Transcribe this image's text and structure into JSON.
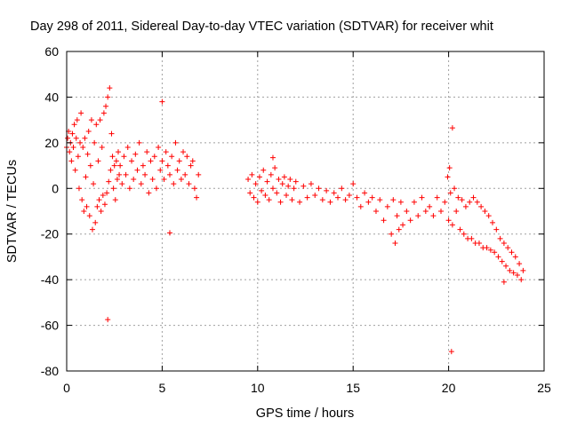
{
  "chart_data": {
    "type": "scatter",
    "title": "Day 298 of 2011, Sidereal Day-to-day VTEC variation (SDTVAR) for receiver whit",
    "xlabel": "GPS time / hours",
    "ylabel": "SDTVAR / TECUs",
    "xlim": [
      0,
      25
    ],
    "ylim": [
      -80,
      60
    ],
    "xticks": [
      0,
      5,
      10,
      15,
      20,
      25
    ],
    "yticks": [
      -80,
      -60,
      -40,
      -20,
      0,
      20,
      40,
      60
    ],
    "grid": true,
    "marker": "+",
    "color": "#ff0000",
    "series": [
      {
        "name": "SDTVAR",
        "points": [
          [
            0.0,
            18
          ],
          [
            0.05,
            22
          ],
          [
            0.1,
            25
          ],
          [
            0.15,
            16
          ],
          [
            0.2,
            20
          ],
          [
            0.25,
            12
          ],
          [
            0.3,
            24
          ],
          [
            0.35,
            18
          ],
          [
            0.4,
            28
          ],
          [
            0.45,
            8
          ],
          [
            0.5,
            22
          ],
          [
            0.55,
            30
          ],
          [
            0.6,
            14
          ],
          [
            0.65,
            0
          ],
          [
            0.7,
            20
          ],
          [
            0.75,
            33
          ],
          [
            0.8,
            -5
          ],
          [
            0.85,
            18
          ],
          [
            0.9,
            -10
          ],
          [
            0.95,
            22
          ],
          [
            1.0,
            5
          ],
          [
            1.05,
            -8
          ],
          [
            1.1,
            15
          ],
          [
            1.15,
            25
          ],
          [
            1.2,
            -12
          ],
          [
            1.25,
            10
          ],
          [
            1.3,
            30
          ],
          [
            1.35,
            -18
          ],
          [
            1.4,
            2
          ],
          [
            1.45,
            20
          ],
          [
            1.5,
            -15
          ],
          [
            1.55,
            28
          ],
          [
            1.6,
            -8
          ],
          [
            1.65,
            12
          ],
          [
            1.7,
            -5
          ],
          [
            1.75,
            30
          ],
          [
            1.8,
            -10
          ],
          [
            1.85,
            18
          ],
          [
            1.9,
            -3
          ],
          [
            1.95,
            33
          ],
          [
            2.0,
            -7
          ],
          [
            2.05,
            36
          ],
          [
            2.1,
            -2
          ],
          [
            2.15,
            40
          ],
          [
            2.2,
            3
          ],
          [
            2.25,
            44
          ],
          [
            2.3,
            8
          ],
          [
            2.35,
            24
          ],
          [
            2.4,
            14
          ],
          [
            2.45,
            0
          ],
          [
            2.5,
            10
          ],
          [
            2.55,
            -5
          ],
          [
            2.6,
            12
          ],
          [
            2.65,
            4
          ],
          [
            2.7,
            16
          ],
          [
            2.75,
            6
          ],
          [
            2.8,
            10
          ],
          [
            2.9,
            2
          ],
          [
            3.0,
            14
          ],
          [
            3.1,
            6
          ],
          [
            3.2,
            18
          ],
          [
            3.3,
            0
          ],
          [
            3.4,
            12
          ],
          [
            3.5,
            4
          ],
          [
            3.6,
            15
          ],
          [
            3.7,
            8
          ],
          [
            3.8,
            20
          ],
          [
            3.9,
            2
          ],
          [
            4.0,
            10
          ],
          [
            4.1,
            6
          ],
          [
            4.2,
            16
          ],
          [
            4.3,
            -2
          ],
          [
            4.4,
            12
          ],
          [
            4.5,
            4
          ],
          [
            4.6,
            14
          ],
          [
            4.7,
            0
          ],
          [
            4.8,
            18
          ],
          [
            4.9,
            8
          ],
          [
            5.0,
            12
          ],
          [
            5.1,
            4
          ],
          [
            5.2,
            16
          ],
          [
            5.3,
            10
          ],
          [
            5.4,
            6
          ],
          [
            5.5,
            14
          ],
          [
            5.6,
            2
          ],
          [
            5.7,
            20
          ],
          [
            5.8,
            8
          ],
          [
            5.9,
            12
          ],
          [
            6.0,
            4
          ],
          [
            6.1,
            16
          ],
          [
            6.2,
            6
          ],
          [
            6.3,
            14
          ],
          [
            6.4,
            2
          ],
          [
            6.5,
            10
          ],
          [
            6.6,
            12
          ],
          [
            6.7,
            0
          ],
          [
            6.8,
            -4
          ],
          [
            6.9,
            6
          ],
          [
            2.15,
            -57.5
          ],
          [
            5.0,
            38
          ],
          [
            5.4,
            -19.5
          ],
          [
            9.5,
            4
          ],
          [
            9.6,
            -2
          ],
          [
            9.7,
            6
          ],
          [
            9.8,
            -4
          ],
          [
            9.9,
            2
          ],
          [
            10.0,
            -6
          ],
          [
            10.1,
            5
          ],
          [
            10.2,
            -1
          ],
          [
            10.3,
            8
          ],
          [
            10.4,
            -3
          ],
          [
            10.5,
            3
          ],
          [
            10.6,
            -5
          ],
          [
            10.7,
            6
          ],
          [
            10.8,
            0
          ],
          [
            10.9,
            9
          ],
          [
            11.0,
            -2
          ],
          [
            11.1,
            4
          ],
          [
            11.2,
            -6
          ],
          [
            11.3,
            2
          ],
          [
            11.4,
            5
          ],
          [
            11.5,
            -3
          ],
          [
            11.6,
            1
          ],
          [
            11.7,
            4
          ],
          [
            11.8,
            -5
          ],
          [
            11.9,
            0
          ],
          [
            12.0,
            3
          ],
          [
            12.2,
            -6
          ],
          [
            12.4,
            1
          ],
          [
            12.6,
            -4
          ],
          [
            12.8,
            2
          ],
          [
            13.0,
            -3
          ],
          [
            13.2,
            0
          ],
          [
            13.4,
            -5
          ],
          [
            13.6,
            -1
          ],
          [
            13.8,
            -6
          ],
          [
            14.0,
            -2
          ],
          [
            14.2,
            -4
          ],
          [
            14.4,
            0
          ],
          [
            14.6,
            -5
          ],
          [
            14.8,
            -3
          ],
          [
            15.0,
            2
          ],
          [
            15.2,
            -4
          ],
          [
            15.4,
            -8
          ],
          [
            15.6,
            -2
          ],
          [
            15.8,
            -6
          ],
          [
            16.0,
            -4
          ],
          [
            16.2,
            -10
          ],
          [
            16.4,
            -5
          ],
          [
            16.6,
            -14
          ],
          [
            16.8,
            -8
          ],
          [
            17.0,
            -20
          ],
          [
            17.1,
            -5
          ],
          [
            17.2,
            -24
          ],
          [
            17.3,
            -12
          ],
          [
            17.4,
            -18
          ],
          [
            17.5,
            -6
          ],
          [
            17.6,
            -16
          ],
          [
            17.8,
            -10
          ],
          [
            18.0,
            -14
          ],
          [
            18.2,
            -6
          ],
          [
            18.4,
            -12
          ],
          [
            18.6,
            -4
          ],
          [
            18.8,
            -10
          ],
          [
            19.0,
            -8
          ],
          [
            19.2,
            -12
          ],
          [
            19.4,
            -4
          ],
          [
            19.6,
            -10
          ],
          [
            19.8,
            -6
          ],
          [
            20.0,
            -14
          ],
          [
            20.1,
            -2
          ],
          [
            20.2,
            -16
          ],
          [
            20.3,
            0
          ],
          [
            20.4,
            -10
          ],
          [
            20.5,
            -4
          ],
          [
            20.6,
            -18
          ],
          [
            20.7,
            -5
          ],
          [
            20.8,
            -20
          ],
          [
            20.9,
            -8
          ],
          [
            21.0,
            -22
          ],
          [
            21.1,
            -6
          ],
          [
            21.2,
            -22
          ],
          [
            21.3,
            -4
          ],
          [
            21.4,
            -24
          ],
          [
            21.5,
            -6
          ],
          [
            21.6,
            -24
          ],
          [
            21.7,
            -8
          ],
          [
            21.8,
            -26
          ],
          [
            21.9,
            -10
          ],
          [
            22.0,
            -26
          ],
          [
            22.1,
            -12
          ],
          [
            22.2,
            -27
          ],
          [
            22.3,
            -15
          ],
          [
            22.4,
            -28
          ],
          [
            22.5,
            -18
          ],
          [
            22.6,
            -30
          ],
          [
            22.7,
            -22
          ],
          [
            22.8,
            -32
          ],
          [
            22.9,
            -24
          ],
          [
            23.0,
            -34
          ],
          [
            23.1,
            -26
          ],
          [
            23.2,
            -36
          ],
          [
            23.3,
            -28
          ],
          [
            23.4,
            -37
          ],
          [
            23.5,
            -30
          ],
          [
            23.6,
            -38
          ],
          [
            23.7,
            -33
          ],
          [
            23.8,
            -40
          ],
          [
            23.9,
            -36
          ],
          [
            10.8,
            13.5
          ],
          [
            20.2,
            26.5
          ],
          [
            20.15,
            -71.5
          ],
          [
            22.9,
            -41
          ],
          [
            20.05,
            9
          ],
          [
            19.95,
            5
          ]
        ]
      }
    ]
  }
}
